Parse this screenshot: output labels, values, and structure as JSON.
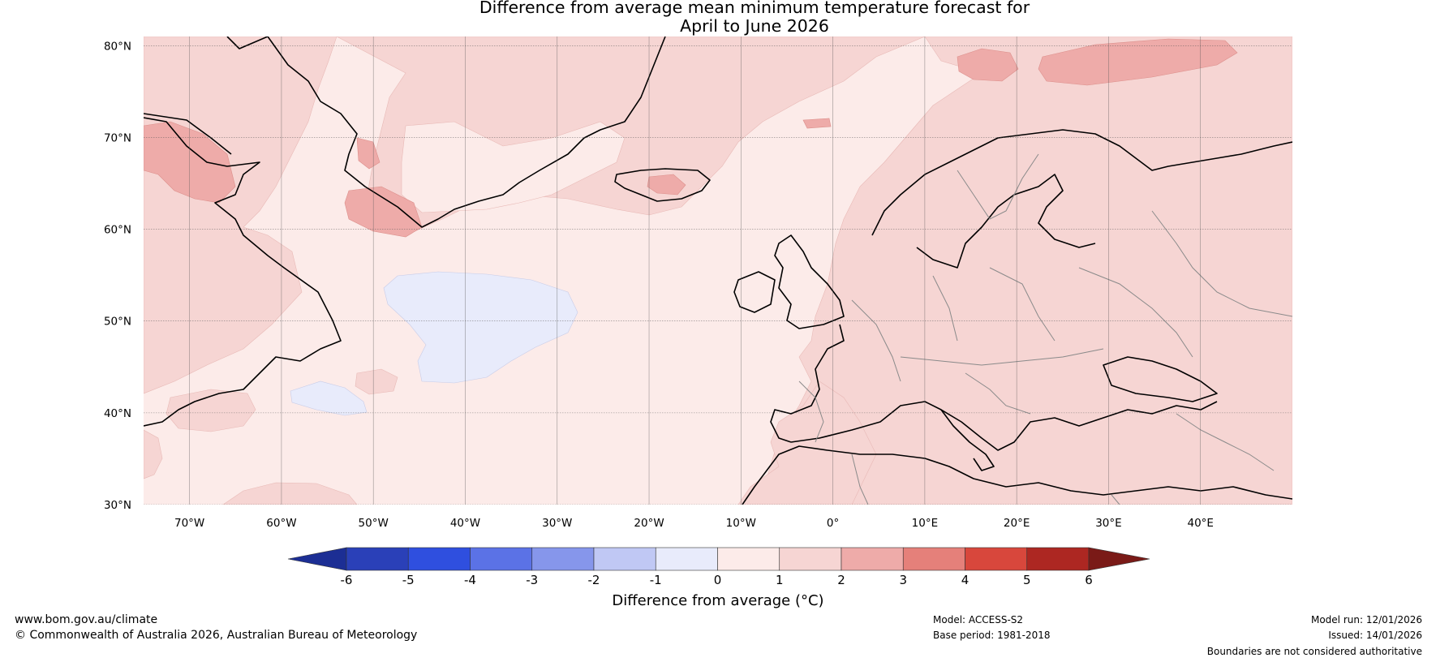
{
  "title": {
    "line1": "Difference from average mean minimum temperature forecast for",
    "line2": "April to June 2026"
  },
  "map": {
    "lat_labels": [
      "80°N",
      "70°N",
      "60°N",
      "50°N",
      "40°N",
      "30°N"
    ],
    "lon_labels": [
      "70°W",
      "60°W",
      "50°W",
      "40°W",
      "30°W",
      "20°W",
      "10°W",
      "0°",
      "10°E",
      "20°E",
      "30°E",
      "40°E"
    ],
    "lat_values": [
      80,
      70,
      60,
      50,
      40,
      30
    ],
    "lon_values": [
      -70,
      -60,
      -50,
      -40,
      -30,
      -20,
      -10,
      0,
      10,
      20,
      30,
      40
    ],
    "extent": {
      "lon_min": -75,
      "lon_max": 50,
      "lat_min": 30,
      "lat_max": 81
    }
  },
  "colorbar": {
    "tick_labels": [
      "-6",
      "-5",
      "-4",
      "-3",
      "-2",
      "-1",
      "0",
      "1",
      "2",
      "3",
      "4",
      "5",
      "6"
    ],
    "colors": [
      "#1c2e94",
      "#2a40b8",
      "#2f4fdf",
      "#5b72e6",
      "#8696eb",
      "#c0c8f4",
      "#e8ebfb",
      "#fcebe9",
      "#f6d5d3",
      "#eeaba9",
      "#e5807a",
      "#d8473c",
      "#ad2722",
      "#7a1a17"
    ],
    "label": "Difference from average (°C)"
  },
  "colors": {
    "ocean_base": "#fcebe9",
    "land_warm": "#f6d5d3",
    "warm_2_3": "#eeaba9",
    "cool_0_1": "#e8ebfb",
    "coastline": "#000000",
    "borders": "#8a8a8a"
  },
  "footer": {
    "website": "www.bom.gov.au/climate",
    "copyright": "© Commonwealth of Australia 2026, Australian Bureau of Meteorology",
    "model": "Model: ACCESS-S2",
    "base_period": "Base period: 1981-2018",
    "model_run": "Model run: 12/01/2026",
    "issued": "Issued: 14/01/2026",
    "disclaimer": "Boundaries are not considered authoritative"
  }
}
